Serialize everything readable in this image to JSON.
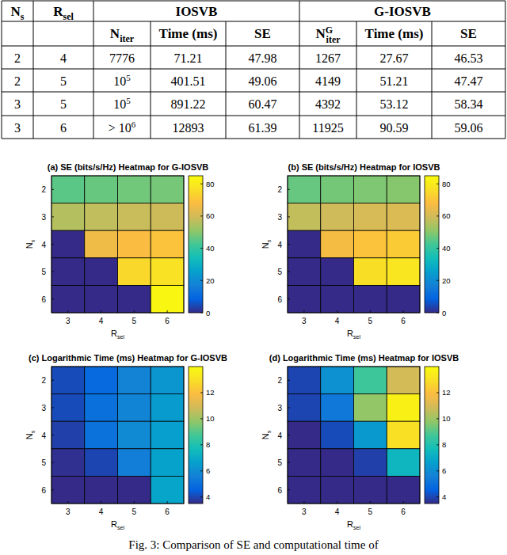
{
  "table": {
    "header": {
      "row1": [
        {
          "t": "N",
          "sub": "s"
        },
        {
          "t": "R",
          "sub": "sel"
        },
        "IOSVB",
        "G-IOSVB"
      ],
      "row2": [
        {
          "t": "N",
          "sub": "iter"
        },
        "Time (ms)",
        "SE",
        {
          "t": "N",
          "sup": "G",
          "sub": "iter"
        },
        "Time (ms)",
        "SE"
      ]
    },
    "rows": [
      [
        2,
        4,
        7776,
        71.21,
        47.98,
        1267,
        27.67,
        46.53
      ],
      [
        2,
        5,
        {
          "t": "10",
          "sup": "5"
        },
        401.51,
        49.06,
        4149,
        51.21,
        47.47
      ],
      [
        3,
        5,
        {
          "t": "10",
          "sup": "5"
        },
        891.22,
        60.47,
        4392,
        53.12,
        58.34
      ],
      [
        3,
        6,
        {
          "t": "> 10",
          "sup": "6"
        },
        12893,
        61.39,
        11925,
        90.59,
        59.06
      ]
    ]
  },
  "chart_data": [
    {
      "type": "heatmap",
      "title": "(a) SE (bits/s/Hz) Heatmap for G-IOSVB",
      "xlabel": {
        "t": "R",
        "sub": "sel"
      },
      "ylabel": {
        "t": "N",
        "sub": "s"
      },
      "x": [
        3,
        4,
        5,
        6
      ],
      "y": [
        2,
        3,
        4,
        5,
        6
      ],
      "cells": [
        [
          45.2,
          46.53,
          47.47,
          48.1
        ],
        [
          55.6,
          57.2,
          58.34,
          59.06
        ],
        [
          0,
          65.5,
          67.8,
          69.6
        ],
        [
          0,
          0,
          74.8,
          77.0
        ],
        [
          0,
          0,
          0,
          83.5
        ]
      ],
      "colorbar": {
        "range": [
          0,
          85
        ],
        "ticks": [
          0,
          20,
          40,
          60,
          80
        ]
      }
    },
    {
      "type": "heatmap",
      "title": "(b) SE (bits/s/Hz) Heatmap for IOSVB",
      "xlabel": {
        "t": "R",
        "sub": "sel"
      },
      "ylabel": {
        "t": "N",
        "sub": "s"
      },
      "x": [
        3,
        4,
        5,
        6
      ],
      "y": [
        2,
        3,
        4,
        5,
        6
      ],
      "cells": [
        [
          46.5,
          47.98,
          49.06,
          49.8
        ],
        [
          57.5,
          59.3,
          60.47,
          61.39
        ],
        [
          0,
          66.8,
          69.8,
          71.6
        ],
        [
          0,
          0,
          76.4,
          78.5
        ],
        [
          0,
          0,
          0,
          0
        ]
      ],
      "colorbar": {
        "range": [
          0,
          85
        ],
        "ticks": [
          0,
          20,
          40,
          60,
          80
        ]
      }
    },
    {
      "type": "heatmap",
      "title": "(c) Logarithmic Time (ms) Heatmap for G-IOSVB",
      "xlabel": {
        "t": "R",
        "sub": "sel"
      },
      "ylabel": {
        "t": "N",
        "sub": "s"
      },
      "x": [
        3,
        4,
        5,
        6
      ],
      "y": [
        2,
        3,
        4,
        5,
        6
      ],
      "cells": [
        [
          4.1,
          4.79,
          5.68,
          6.3
        ],
        [
          4.1,
          5.0,
          5.73,
          6.5
        ],
        [
          3.9,
          5.1,
          5.9,
          6.6
        ],
        [
          3.6,
          4.0,
          5.5,
          6.7
        ],
        [
          3.5,
          3.5,
          3.5,
          6.8
        ]
      ],
      "colorbar": {
        "range": [
          3.5,
          14
        ],
        "ticks": [
          4,
          6,
          8,
          10,
          12
        ]
      }
    },
    {
      "type": "heatmap",
      "title": "(d) Logarithmic Time (ms) Heatmap for IOSVB",
      "xlabel": {
        "t": "R",
        "sub": "sel"
      },
      "ylabel": {
        "t": "N",
        "sub": "s"
      },
      "x": [
        3,
        4,
        5,
        6
      ],
      "y": [
        2,
        3,
        4,
        5,
        6
      ],
      "cells": [
        [
          4.0,
          6.15,
          8.65,
          10.9
        ],
        [
          4.0,
          5.3,
          9.8,
          13.65
        ],
        [
          3.5,
          4.1,
          6.4,
          13.0
        ],
        [
          3.5,
          3.5,
          3.9,
          7.4
        ],
        [
          3.5,
          3.5,
          3.5,
          3.5
        ]
      ],
      "colorbar": {
        "range": [
          3.5,
          14
        ],
        "ticks": [
          4,
          6,
          8,
          10,
          12
        ]
      }
    }
  ],
  "caption": "Fig. 3: Comparison of SE and computational time of"
}
